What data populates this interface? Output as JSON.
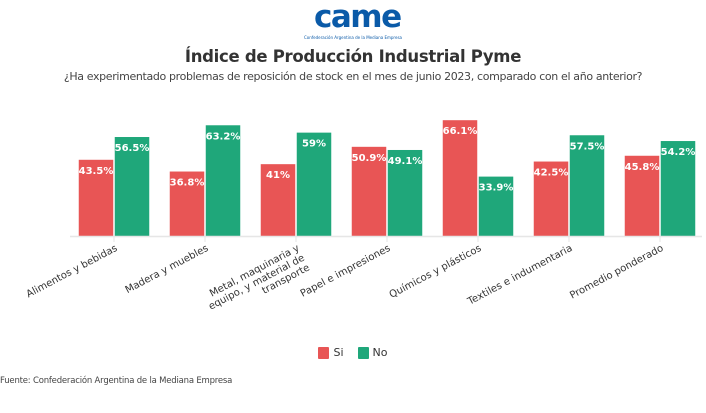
{
  "logo": {
    "wordmark": "came",
    "tagline": "Confederación Argentina de la Mediana Empresa"
  },
  "colors": {
    "si": "#e85555",
    "no": "#1fa77a",
    "brand": "#0a5aa8",
    "baseline": "#e6e6e6"
  },
  "source": "Fuente: Confederación Argentina de la Mediana Empresa",
  "chart_data": {
    "type": "bar",
    "title": "Índice de Producción Industrial Pyme",
    "subtitle": "¿Ha experimentado problemas de reposición de stock en el mes de junio 2023, comparado con el año anterior?",
    "xlabel": "",
    "ylabel": "",
    "ylim": [
      0,
      70
    ],
    "grid": false,
    "legend_position": "bottom",
    "categories": [
      [
        "Alimentos y bebidas"
      ],
      [
        "Madera y muebles"
      ],
      [
        "Metal, maquinaria y",
        "equipo, y material de",
        "transporte"
      ],
      [
        "Papel e impresiones"
      ],
      [
        "Químicos y plásticos"
      ],
      [
        "Textiles e indumentaria"
      ],
      [
        "Promedio ponderado"
      ]
    ],
    "series": [
      {
        "name": "Si",
        "values": [
          43.5,
          36.8,
          41,
          50.9,
          66.1,
          42.5,
          45.8
        ],
        "labels": [
          "43.5%",
          "36.8%",
          "41%",
          "50.9%",
          "66.1%",
          "42.5%",
          "45.8%"
        ]
      },
      {
        "name": "No",
        "values": [
          56.5,
          63.2,
          59,
          49.1,
          33.9,
          57.5,
          54.2
        ],
        "labels": [
          "56.5%",
          "63.2%",
          "59%",
          "49.1%",
          "33.9%",
          "57.5%",
          "54.2%"
        ]
      }
    ]
  }
}
